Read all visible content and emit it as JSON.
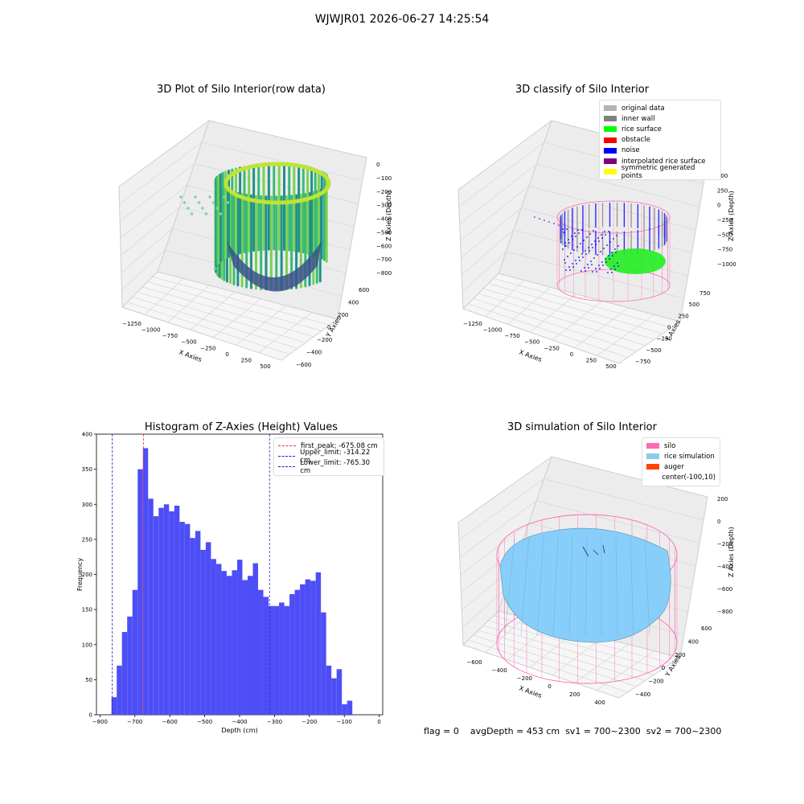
{
  "window": {
    "suptitle": "WJWJR01 2026-06-27 14:25:54"
  },
  "colors": {
    "hist_bar": "#4a4af7",
    "first_peak": "#e33",
    "limits": "#2222bb",
    "silo": "#ff69b4",
    "rice": "#87cefa",
    "auger": "#ff4500",
    "noise": "#0000ff",
    "rice_surface": "#00ff00"
  },
  "panels": {
    "raw": {
      "title": "3D Plot of Silo Interior(row data)",
      "xlabel": "X Axies",
      "ylabel": "Y Axies",
      "zlabel": "Z Axies (Depth)",
      "xticks": [
        "−1250",
        "−1000",
        "−750",
        "−500",
        "−250",
        "0",
        "250",
        "500"
      ],
      "yticks": [
        "−600",
        "−400",
        "−200",
        "0",
        "200",
        "400",
        "600"
      ],
      "zticks": [
        "0",
        "−100",
        "−200",
        "−300",
        "−400",
        "−500",
        "−600",
        "−700",
        "−800"
      ]
    },
    "classify": {
      "title": "3D classify of Silo Interior",
      "xlabel": "X Axies",
      "ylabel": "Y Axies",
      "zlabel": "Z Axies (Depth)",
      "xticks": [
        "−1250",
        "−1000",
        "−750",
        "−500",
        "−250",
        "0",
        "250",
        "500"
      ],
      "yticks": [
        "−750",
        "−500",
        "−250",
        "0",
        "250",
        "500",
        "750"
      ],
      "zticks": [
        "500",
        "250",
        "0",
        "−250",
        "−500",
        "−750",
        "−1000"
      ],
      "legend": [
        {
          "label": "original data",
          "color": "#b3b3b3"
        },
        {
          "label": "inner wall",
          "color": "#808080"
        },
        {
          "label": "rice surface",
          "color": "#00ff00"
        },
        {
          "label": "obstacle",
          "color": "#ff0000"
        },
        {
          "label": "noise",
          "color": "#0000ff"
        },
        {
          "label": "interpolated rice surface",
          "color": "#800080"
        },
        {
          "label": "symmetric generated points",
          "color": "#ffff00"
        }
      ]
    },
    "simulation": {
      "title": "3D simulation of Silo Interior",
      "xlabel": "X Axies",
      "ylabel": "Y Axies",
      "zlabel": "Z Axies (Depth)",
      "xticks": [
        "−600",
        "−400",
        "−200",
        "0",
        "200",
        "400"
      ],
      "yticks": [
        "−400",
        "−200",
        "0",
        "200",
        "400",
        "600"
      ],
      "zticks": [
        "200",
        "0",
        "−200",
        "−400",
        "−600",
        "−800"
      ],
      "legend": [
        {
          "label": "silo",
          "color": "#ff69b4"
        },
        {
          "label": "rice simulation",
          "color": "#87ceeb"
        },
        {
          "label": "auger",
          "color": "#ff4500"
        },
        {
          "label": "center(-100,10)",
          "color": ""
        }
      ]
    }
  },
  "footer": {
    "flag": "flag = 0",
    "avg": "avgDepth = 453 cm",
    "sv1": "sv1 = 700~2300",
    "sv2": "sv2 = 700~2300"
  },
  "chart_data": {
    "type": "bar",
    "title": "Histogram of Z-Axies (Height) Values",
    "xlabel": "Depth (cm)",
    "ylabel": "Frequency",
    "xlim": [
      -810,
      10
    ],
    "ylim": [
      0,
      400
    ],
    "xticks": [
      -800,
      -700,
      -600,
      -500,
      -400,
      -300,
      -200,
      -100,
      0
    ],
    "yticks": [
      0,
      50,
      100,
      150,
      200,
      250,
      300,
      350,
      400
    ],
    "bin_start": -767,
    "bin_width": 15.0,
    "values": [
      25,
      70,
      118,
      140,
      178,
      350,
      380,
      308,
      283,
      295,
      300,
      290,
      298,
      275,
      272,
      252,
      262,
      235,
      246,
      222,
      215,
      205,
      198,
      206,
      221,
      192,
      198,
      216,
      178,
      168,
      155,
      155,
      160,
      155,
      172,
      178,
      186,
      193,
      191,
      203,
      146,
      70,
      52,
      65,
      15,
      20
    ],
    "vlines": [
      {
        "label": "first_peak: -675.08 cm",
        "x": -675.08,
        "style": "first_peak"
      },
      {
        "label": "Upper_limit: -314.22 cm",
        "x": -314.22,
        "style": "limits"
      },
      {
        "label": "Lower_limit: -765.30 cm",
        "x": -765.3,
        "style": "limits"
      }
    ]
  }
}
